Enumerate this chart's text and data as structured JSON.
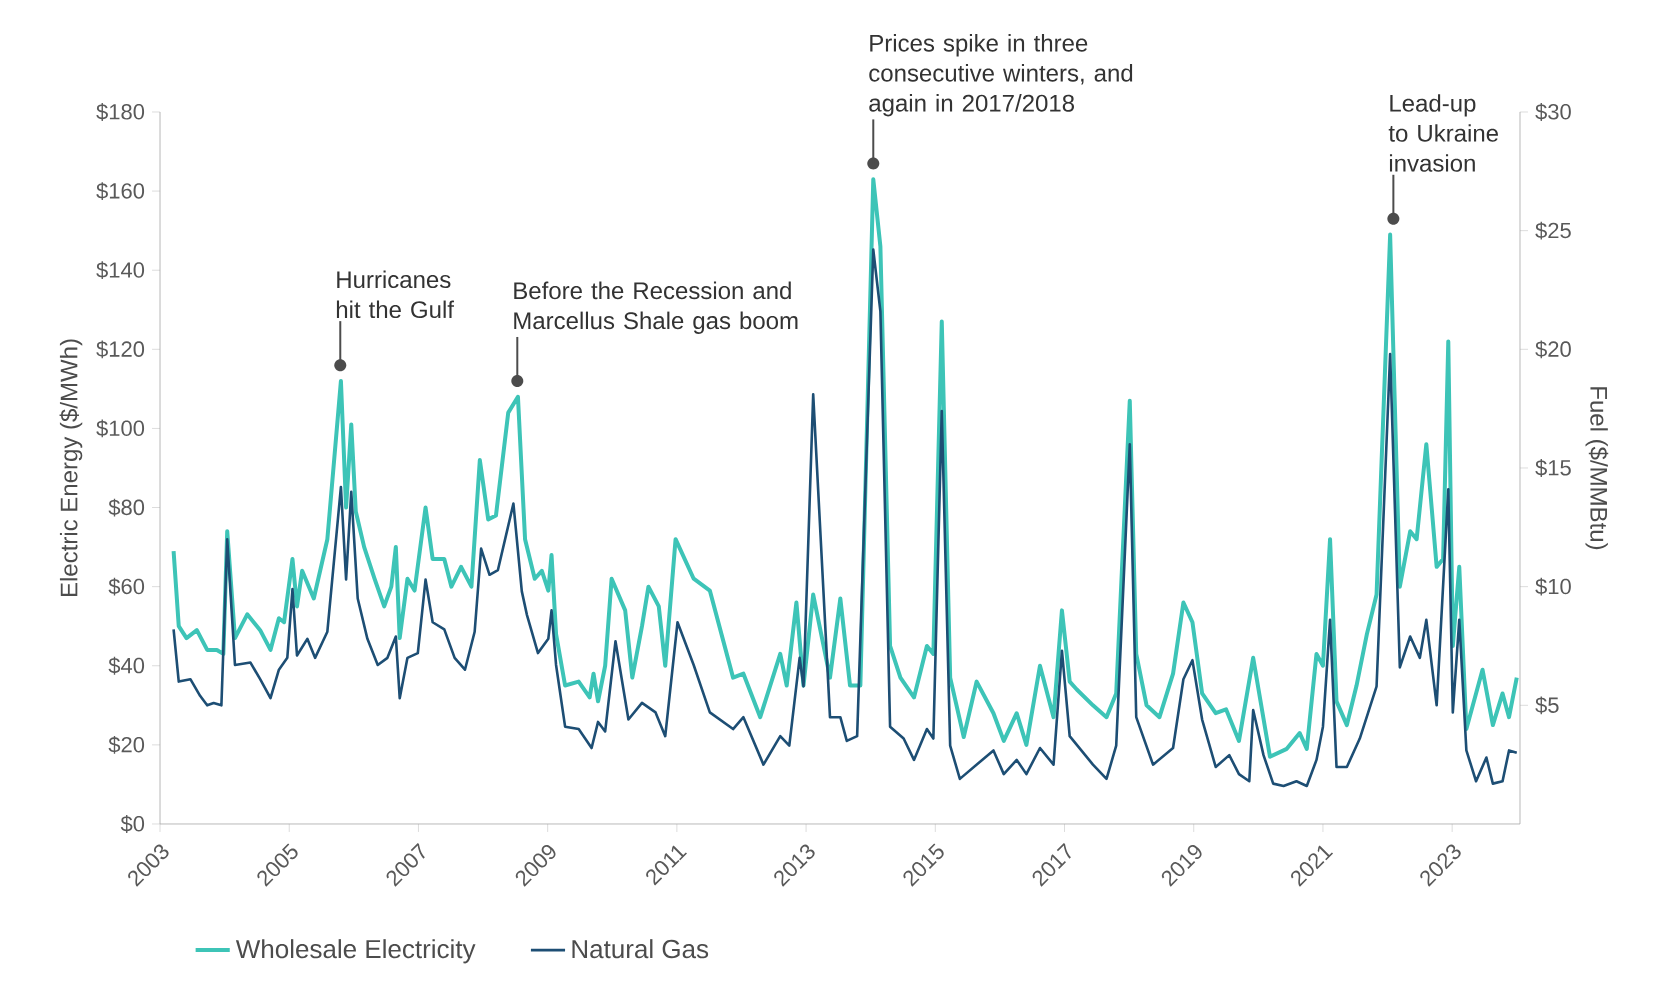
{
  "chart_data": {
    "type": "line",
    "xlabel": null,
    "ylabel": "Electric Energy ($/MWh)",
    "y2label": "Fuel ($/MMBtu)",
    "xlim": [
      2003,
      2024.05
    ],
    "xticks": [
      2003,
      2005,
      2007,
      2009,
      2011,
      2013,
      2015,
      2017,
      2019,
      2021,
      2023
    ],
    "ylim": [
      0,
      180
    ],
    "yticks": [
      {
        "value": 0,
        "label": "$0"
      },
      {
        "value": 20,
        "label": "$20"
      },
      {
        "value": 40,
        "label": "$40"
      },
      {
        "value": 60,
        "label": "$60"
      },
      {
        "value": 80,
        "label": "$80"
      },
      {
        "value": 100,
        "label": "$100"
      },
      {
        "value": 120,
        "label": "$120"
      },
      {
        "value": 140,
        "label": "$140"
      },
      {
        "value": 160,
        "label": "$160"
      },
      {
        "value": 180,
        "label": "$180"
      }
    ],
    "y2lim": [
      0,
      30
    ],
    "y2ticks": [
      {
        "value": 5,
        "label": "$5"
      },
      {
        "value": 10,
        "label": "$10"
      },
      {
        "value": 15,
        "label": "$15"
      },
      {
        "value": 20,
        "label": "$20"
      },
      {
        "value": 25,
        "label": "$25"
      },
      {
        "value": 30,
        "label": "$30"
      }
    ],
    "legend": "bottom",
    "annotations": [
      {
        "text": "Hurricanes hit the Gulf",
        "x": 2005.79,
        "y": 116
      },
      {
        "text": "Before the Recession and Marcellus Shale gas boom",
        "x": 2008.53,
        "y": 112
      },
      {
        "text": "Prices spike in three consecutive winters, and again in 2017/2018",
        "x": 2014.04,
        "y": 167
      },
      {
        "text": "Lead-up to Ukraine invasion",
        "x": 2022.09,
        "y": 153
      }
    ],
    "series": [
      {
        "name": "Wholesale Electricity",
        "color": "#3dc4b7",
        "x": [
          2003.21,
          2003.29,
          2003.41,
          2003.57,
          2003.73,
          2003.88,
          2003.98,
          2004.04,
          2004.16,
          2004.35,
          2004.55,
          2004.71,
          2004.84,
          2004.92,
          2005.05,
          2005.12,
          2005.2,
          2005.38,
          2005.59,
          2005.8,
          2005.88,
          2005.96,
          2006.03,
          2006.16,
          2006.32,
          2006.47,
          2006.58,
          2006.65,
          2006.71,
          2006.83,
          2006.94,
          2007.11,
          2007.22,
          2007.4,
          2007.51,
          2007.66,
          2007.82,
          2007.95,
          2008.08,
          2008.2,
          2008.39,
          2008.54,
          2008.65,
          2008.8,
          2008.91,
          2009.01,
          2009.06,
          2009.13,
          2009.27,
          2009.48,
          2009.65,
          2009.71,
          2009.78,
          2009.89,
          2009.99,
          2010.2,
          2010.31,
          2010.46,
          2010.56,
          2010.72,
          2010.82,
          2010.98,
          2011.26,
          2011.51,
          2011.87,
          2012.03,
          2012.29,
          2012.6,
          2012.7,
          2012.85,
          2012.96,
          2013.11,
          2013.37,
          2013.53,
          2013.68,
          2013.84,
          2014.04,
          2014.15,
          2014.3,
          2014.46,
          2014.67,
          2014.87,
          2014.97,
          2015.1,
          2015.23,
          2015.44,
          2015.64,
          2015.9,
          2016.06,
          2016.26,
          2016.41,
          2016.62,
          2016.83,
          2016.96,
          2017.08,
          2017.19,
          2017.44,
          2017.65,
          2017.8,
          2018.01,
          2018.11,
          2018.27,
          2018.47,
          2018.68,
          2018.84,
          2018.98,
          2019.13,
          2019.34,
          2019.5,
          2019.7,
          2019.92,
          2020.18,
          2020.44,
          2020.64,
          2020.75,
          2020.9,
          2021.0,
          2021.11,
          2021.21,
          2021.37,
          2021.52,
          2021.68,
          2021.83,
          2022.04,
          2022.19,
          2022.35,
          2022.45,
          2022.6,
          2022.76,
          2022.86,
          2022.94,
          2023.01,
          2023.11,
          2023.22,
          2023.47,
          2023.63,
          2023.78,
          2023.88,
          2024.0
        ],
        "values": [
          69,
          50,
          47,
          49,
          44,
          44,
          43,
          74,
          47,
          53,
          49,
          44,
          52,
          51,
          67,
          55,
          64,
          57,
          72,
          112,
          80,
          101,
          79,
          70,
          62,
          55,
          60,
          70,
          47,
          62,
          59,
          80,
          67,
          67,
          60,
          65,
          60,
          92,
          77,
          78,
          104,
          108,
          72,
          62,
          64,
          59,
          68,
          48,
          35,
          36,
          32,
          38,
          31,
          40,
          62,
          54,
          37,
          50,
          60,
          55,
          40,
          72,
          62,
          59,
          37,
          38,
          27,
          43,
          35,
          56,
          35,
          58,
          37,
          57,
          35,
          35,
          163,
          146,
          45,
          37,
          32,
          45,
          43,
          127,
          37,
          22,
          36,
          28,
          21,
          28,
          20,
          40,
          27,
          54,
          36,
          34,
          30,
          27,
          33,
          107,
          43,
          30,
          27,
          38,
          56,
          51,
          33,
          28,
          29,
          21,
          42,
          17,
          19,
          23,
          19,
          43,
          40,
          72,
          31,
          25,
          35,
          48,
          58,
          149,
          60,
          74,
          72,
          96,
          65,
          67,
          122,
          45,
          65,
          24,
          39,
          25,
          33,
          27,
          37
        ]
      },
      {
        "name": "Natural Gas",
        "color": "#1d4e74",
        "axis": "y2",
        "x": [
          2003.21,
          2003.29,
          2003.47,
          2003.62,
          2003.73,
          2003.83,
          2003.95,
          2004.04,
          2004.16,
          2004.4,
          2004.55,
          2004.71,
          2004.84,
          2004.97,
          2005.05,
          2005.12,
          2005.28,
          2005.4,
          2005.59,
          2005.8,
          2005.88,
          2005.96,
          2006.06,
          2006.21,
          2006.37,
          2006.52,
          2006.65,
          2006.71,
          2006.83,
          2006.99,
          2007.11,
          2007.22,
          2007.4,
          2007.56,
          2007.72,
          2007.87,
          2007.97,
          2008.1,
          2008.23,
          2008.47,
          2008.6,
          2008.68,
          2008.85,
          2009.01,
          2009.06,
          2009.13,
          2009.27,
          2009.48,
          2009.68,
          2009.78,
          2009.89,
          2010.05,
          2010.25,
          2010.46,
          2010.67,
          2010.82,
          2011.01,
          2011.26,
          2011.51,
          2011.87,
          2012.03,
          2012.34,
          2012.6,
          2012.74,
          2012.9,
          2012.96,
          2013.11,
          2013.37,
          2013.53,
          2013.63,
          2013.79,
          2014.04,
          2014.15,
          2014.3,
          2014.51,
          2014.67,
          2014.87,
          2014.97,
          2015.1,
          2015.23,
          2015.38,
          2015.64,
          2015.9,
          2016.06,
          2016.26,
          2016.41,
          2016.62,
          2016.83,
          2016.96,
          2017.08,
          2017.44,
          2017.65,
          2017.8,
          2018.01,
          2018.11,
          2018.37,
          2018.68,
          2018.84,
          2018.98,
          2019.13,
          2019.34,
          2019.55,
          2019.7,
          2019.86,
          2019.92,
          2020.08,
          2020.23,
          2020.39,
          2020.59,
          2020.75,
          2020.9,
          2021.0,
          2021.11,
          2021.21,
          2021.37,
          2021.57,
          2021.83,
          2022.04,
          2022.19,
          2022.35,
          2022.5,
          2022.6,
          2022.76,
          2022.94,
          2023.01,
          2023.11,
          2023.22,
          2023.37,
          2023.53,
          2023.63,
          2023.78,
          2023.88,
          2024.0
        ],
        "values": [
          8.2,
          6.0,
          6.1,
          5.4,
          5.0,
          5.1,
          5.0,
          12.0,
          6.7,
          6.8,
          6.1,
          5.3,
          6.5,
          7.0,
          9.9,
          7.1,
          7.8,
          7.0,
          8.1,
          14.2,
          10.3,
          14.0,
          9.5,
          7.8,
          6.7,
          7.0,
          7.9,
          5.3,
          7.0,
          7.2,
          10.3,
          8.5,
          8.2,
          7.0,
          6.5,
          8.1,
          11.6,
          10.5,
          10.7,
          13.5,
          9.8,
          8.8,
          7.2,
          7.8,
          9.0,
          6.7,
          4.1,
          4.0,
          3.2,
          4.3,
          3.9,
          7.7,
          4.4,
          5.1,
          4.7,
          3.7,
          8.5,
          6.7,
          4.7,
          4.0,
          4.5,
          2.5,
          3.7,
          3.3,
          7.0,
          5.8,
          18.1,
          4.5,
          4.5,
          3.5,
          3.7,
          24.2,
          21.6,
          4.1,
          3.6,
          2.7,
          4.0,
          3.6,
          17.4,
          3.3,
          1.9,
          2.5,
          3.1,
          2.1,
          2.7,
          2.1,
          3.2,
          2.5,
          7.3,
          3.7,
          2.5,
          1.9,
          3.3,
          16.0,
          4.5,
          2.5,
          3.2,
          6.1,
          6.9,
          4.4,
          2.4,
          2.9,
          2.1,
          1.8,
          4.8,
          2.9,
          1.7,
          1.6,
          1.8,
          1.6,
          2.7,
          4.1,
          8.6,
          2.4,
          2.4,
          3.6,
          5.8,
          19.8,
          6.6,
          7.9,
          7.0,
          8.6,
          5.0,
          14.1,
          4.7,
          8.6,
          3.1,
          1.8,
          2.8,
          1.7,
          1.8,
          3.1,
          3.0
        ]
      }
    ]
  }
}
